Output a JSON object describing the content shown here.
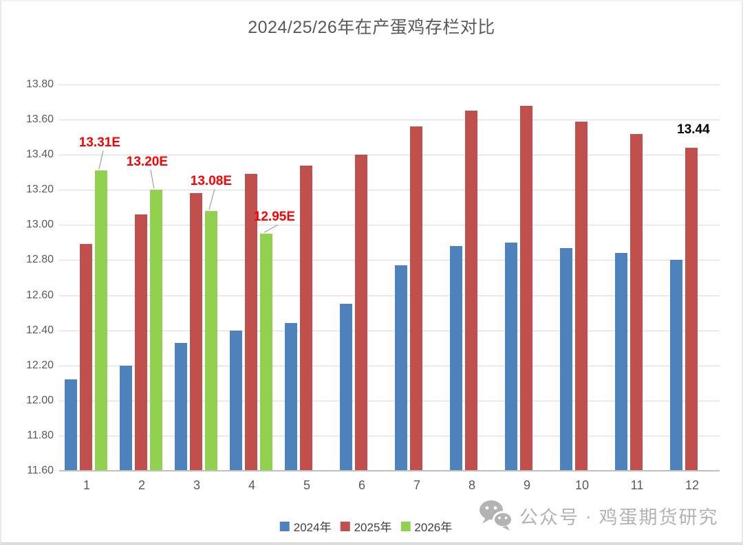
{
  "title": "2024/25/26年在产蛋鸡存栏对比",
  "chart_data": {
    "type": "bar",
    "categories": [
      "1",
      "2",
      "3",
      "4",
      "5",
      "6",
      "7",
      "8",
      "9",
      "10",
      "11",
      "12"
    ],
    "series": [
      {
        "name": "2024年",
        "color": "#4F81BD",
        "values": [
          12.12,
          12.2,
          12.33,
          12.4,
          12.44,
          12.55,
          12.77,
          12.88,
          12.9,
          12.87,
          12.84,
          12.8
        ]
      },
      {
        "name": "2025年",
        "color": "#C0504D",
        "values": [
          12.89,
          13.06,
          13.18,
          13.29,
          13.34,
          13.4,
          13.56,
          13.65,
          13.68,
          13.59,
          13.52,
          13.44
        ]
      },
      {
        "name": "2026年",
        "color": "#92D050",
        "values": [
          13.31,
          13.2,
          13.08,
          12.95,
          null,
          null,
          null,
          null,
          null,
          null,
          null,
          null
        ]
      }
    ],
    "ylim": [
      11.6,
      13.8
    ],
    "ytick_step": 0.2,
    "grid": true,
    "legend_position": "bottom",
    "annotations": [
      {
        "text": "13.31E",
        "series": 2,
        "category": 0,
        "color": "#FF0000",
        "dx": -2,
        "gap": 30,
        "leader": true
      },
      {
        "text": "13.20E",
        "series": 2,
        "category": 1,
        "color": "#FF0000",
        "dx": -13,
        "gap": 30,
        "leader": true
      },
      {
        "text": "13.08E",
        "series": 2,
        "category": 2,
        "color": "#FF0000",
        "dx": 0,
        "gap": 33,
        "leader": true
      },
      {
        "text": "12.95E",
        "series": 2,
        "category": 3,
        "color": "#FF0000",
        "dx": 12,
        "gap": 14,
        "leader": true
      },
      {
        "text": "13.44",
        "series": 1,
        "category": 11,
        "color": "#000000",
        "dx": 3,
        "gap": 16,
        "leader": false
      }
    ]
  },
  "watermark": {
    "icon": "wechat-icon",
    "text": "公众号 · 鸡蛋期货研究"
  },
  "colors": {
    "gridline": "#D9D9D9",
    "axis_line": "#BFBFBF",
    "axis_text": "#595959",
    "title_text": "#595959",
    "leader_line": "#A6A6A6",
    "watermark_text": "#B3B3B3"
  }
}
